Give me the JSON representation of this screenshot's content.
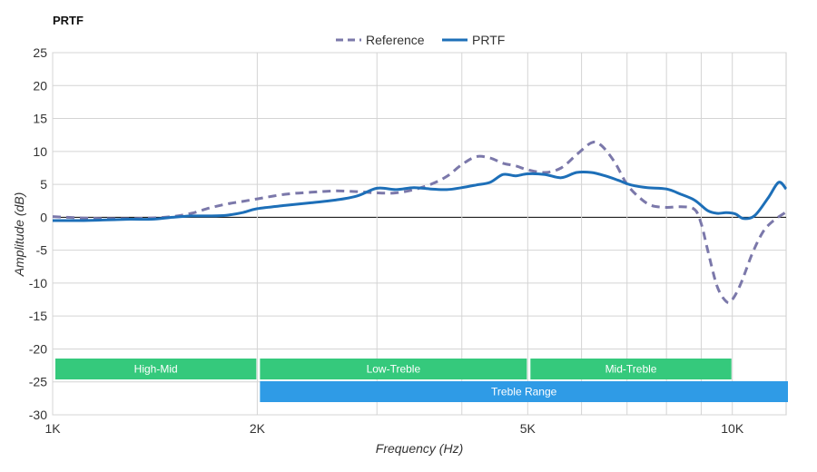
{
  "chart_data": {
    "type": "line",
    "title": "PRTF",
    "xlabel": "Frequency (Hz)",
    "ylabel": "Amplitude (dB)",
    "x_scale": "log",
    "xlim": [
      1000,
      12000
    ],
    "ylim": [
      -30,
      25
    ],
    "grid": true,
    "legend_position": "top-center",
    "x_ticks": [
      {
        "value": 1000,
        "label": "1K"
      },
      {
        "value": 2000,
        "label": "2K"
      },
      {
        "value": 5000,
        "label": "5K"
      },
      {
        "value": 10000,
        "label": "10K"
      }
    ],
    "x_minor_grid": [
      3000,
      4000,
      6000,
      7000,
      8000,
      9000
    ],
    "y_ticks": [
      25,
      20,
      15,
      10,
      5,
      0,
      -5,
      -10,
      -15,
      -20,
      -25,
      -30
    ],
    "series": [
      {
        "name": "Reference",
        "color": "#7b78aa",
        "style": "dashed",
        "points": [
          [
            1000,
            0.1
          ],
          [
            1100,
            -0.1
          ],
          [
            1200,
            -0.2
          ],
          [
            1300,
            -0.2
          ],
          [
            1400,
            -0.1
          ],
          [
            1500,
            0.1
          ],
          [
            1600,
            0.6
          ],
          [
            1700,
            1.4
          ],
          [
            1800,
            2.0
          ],
          [
            1900,
            2.4
          ],
          [
            2000,
            2.8
          ],
          [
            2200,
            3.5
          ],
          [
            2400,
            3.8
          ],
          [
            2600,
            4.0
          ],
          [
            2800,
            3.9
          ],
          [
            3000,
            3.7
          ],
          [
            3200,
            3.7
          ],
          [
            3400,
            4.2
          ],
          [
            3600,
            5.0
          ],
          [
            3800,
            6.2
          ],
          [
            4000,
            8.0
          ],
          [
            4200,
            9.2
          ],
          [
            4400,
            9.0
          ],
          [
            4600,
            8.2
          ],
          [
            4800,
            7.8
          ],
          [
            5000,
            7.2
          ],
          [
            5300,
            6.8
          ],
          [
            5600,
            7.5
          ],
          [
            5900,
            9.5
          ],
          [
            6200,
            11.3
          ],
          [
            6400,
            11.0
          ],
          [
            6700,
            8.5
          ],
          [
            7000,
            5.0
          ],
          [
            7300,
            3.0
          ],
          [
            7600,
            1.8
          ],
          [
            8000,
            1.5
          ],
          [
            8400,
            1.6
          ],
          [
            8800,
            1.2
          ],
          [
            9000,
            -1.0
          ],
          [
            9200,
            -5.0
          ],
          [
            9500,
            -10.5
          ],
          [
            9800,
            -12.8
          ],
          [
            10000,
            -12.5
          ],
          [
            10300,
            -10.0
          ],
          [
            10700,
            -5.5
          ],
          [
            11100,
            -2.2
          ],
          [
            11500,
            -0.5
          ],
          [
            12000,
            0.8
          ]
        ]
      },
      {
        "name": "PRTF",
        "color": "#1d6fb8",
        "style": "solid",
        "points": [
          [
            1000,
            -0.5
          ],
          [
            1100,
            -0.5
          ],
          [
            1200,
            -0.4
          ],
          [
            1300,
            -0.3
          ],
          [
            1400,
            -0.3
          ],
          [
            1500,
            0.0
          ],
          [
            1600,
            0.2
          ],
          [
            1700,
            0.2
          ],
          [
            1800,
            0.3
          ],
          [
            1900,
            0.7
          ],
          [
            2000,
            1.3
          ],
          [
            2200,
            1.8
          ],
          [
            2400,
            2.2
          ],
          [
            2600,
            2.6
          ],
          [
            2800,
            3.2
          ],
          [
            3000,
            4.4
          ],
          [
            3200,
            4.2
          ],
          [
            3400,
            4.5
          ],
          [
            3600,
            4.3
          ],
          [
            3800,
            4.2
          ],
          [
            4000,
            4.5
          ],
          [
            4200,
            4.9
          ],
          [
            4400,
            5.3
          ],
          [
            4600,
            6.5
          ],
          [
            4800,
            6.3
          ],
          [
            5000,
            6.6
          ],
          [
            5300,
            6.5
          ],
          [
            5600,
            6.0
          ],
          [
            5900,
            6.8
          ],
          [
            6200,
            6.8
          ],
          [
            6500,
            6.3
          ],
          [
            6800,
            5.6
          ],
          [
            7100,
            4.9
          ],
          [
            7500,
            4.5
          ],
          [
            8000,
            4.3
          ],
          [
            8400,
            3.5
          ],
          [
            8800,
            2.6
          ],
          [
            9200,
            1.0
          ],
          [
            9500,
            0.6
          ],
          [
            9800,
            0.7
          ],
          [
            10100,
            0.5
          ],
          [
            10400,
            -0.2
          ],
          [
            10800,
            0.3
          ],
          [
            11300,
            3.0
          ],
          [
            11700,
            5.3
          ],
          [
            12000,
            4.3
          ]
        ]
      }
    ],
    "bands": [
      {
        "label": "High-Mid",
        "from": 1000,
        "to": 2000,
        "row": 1,
        "color": "#35c97c"
      },
      {
        "label": "Low-Treble",
        "from": 2000,
        "to": 5000,
        "row": 1,
        "color": "#35c97c"
      },
      {
        "label": "Mid-Treble",
        "from": 5000,
        "to": 10000,
        "row": 1,
        "color": "#35c97c"
      },
      {
        "label": "Treble Range",
        "from": 2000,
        "to": 12000,
        "row": 2,
        "color": "#2f9be6"
      }
    ]
  }
}
